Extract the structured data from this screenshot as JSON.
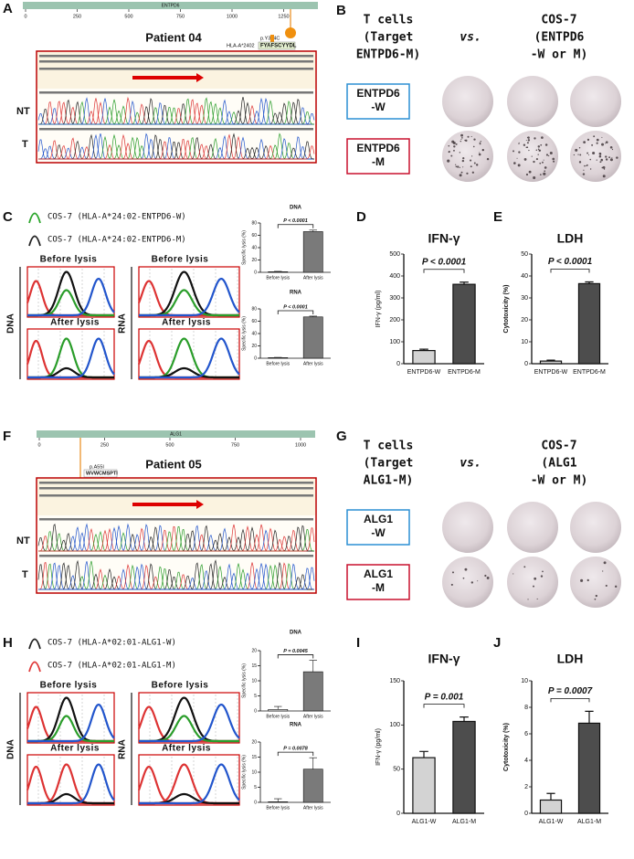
{
  "figure": {
    "A": {
      "letter": "A",
      "gene": "ENTPD6",
      "ticks": [
        "0",
        "250",
        "500",
        "750",
        "1000",
        "1250"
      ],
      "patient": "Patient 04",
      "mutation": "p.Y384C",
      "hla": "HLA-A*2402",
      "peptide": "FYAFSCYYDL",
      "rows": [
        "NT",
        "T"
      ]
    },
    "B": {
      "letter": "B",
      "left": [
        "T cells",
        "(Target",
        "ENTPD6-M)"
      ],
      "vs": "vs.",
      "right": [
        "COS-7",
        "(ENTPD6",
        "-W or M)"
      ],
      "wt": [
        "ENTPD6",
        "-W"
      ],
      "mut": [
        "ENTPD6",
        "-M"
      ]
    },
    "C": {
      "letter": "C",
      "legend": [
        "COS-7 (HLA-A*24:02-ENTPD6-W)",
        "COS-7 (HLA-A*24:02-ENTPD6-M)"
      ],
      "before": "Before lysis",
      "after": "After lysis",
      "dna": "DNA",
      "rna": "RNA"
    },
    "D": {
      "letter": "D"
    },
    "E": {
      "letter": "E"
    },
    "F": {
      "letter": "F",
      "gene": "ALG1",
      "ticks": [
        "0",
        "250",
        "500",
        "750",
        "1000"
      ],
      "patient": "Patient 05",
      "mutation": "p.A55I",
      "peptide": "WVWCMSPTI",
      "rows": [
        "NT",
        "T"
      ]
    },
    "G": {
      "letter": "G",
      "left": [
        "T cells",
        "(Target",
        "ALG1-M)"
      ],
      "vs": "vs.",
      "right": [
        "COS-7",
        "(ALG1",
        "-W or M)"
      ],
      "wt": [
        "ALG1",
        "-W"
      ],
      "mut": [
        "ALG1",
        "-M"
      ]
    },
    "H": {
      "letter": "H",
      "legend": [
        "COS-7 (HLA-A*02:01-ALG1-W)",
        "COS-7 (HLA-A*02:01-ALG1-M)"
      ],
      "before": "Before lysis",
      "after": "After lysis",
      "dna": "DNA",
      "rna": "RNA"
    },
    "I": {
      "letter": "I"
    },
    "J": {
      "letter": "J"
    }
  },
  "chart_data": [
    {
      "type": "bar",
      "title": "DNA",
      "annotation": "P < 0.0001",
      "ylabel": "Specific lysis (%)",
      "categories": [
        "Before lysis",
        "After lysis"
      ],
      "values": [
        1,
        66
      ],
      "errors": [
        0.6,
        2.5
      ],
      "colors": [
        "#e6e6e6",
        "#7a7a7a"
      ],
      "ylim": [
        0,
        80
      ],
      "yticks": [
        0,
        20,
        40,
        60,
        80
      ]
    },
    {
      "type": "bar",
      "title": "RNA",
      "annotation": "P < 0.0001",
      "ylabel": "Specific lysis (%)",
      "categories": [
        "Before lysis",
        "After lysis"
      ],
      "values": [
        1,
        67
      ],
      "errors": [
        0.5,
        1.2
      ],
      "colors": [
        "#e6e6e6",
        "#7a7a7a"
      ],
      "ylim": [
        0,
        80
      ],
      "yticks": [
        0,
        20,
        40,
        60,
        80
      ]
    },
    {
      "type": "bar",
      "title": "IFN-γ",
      "annotation": "P < 0.0001",
      "ylabel": "IFN-γ (pg/ml)",
      "categories": [
        "ENTPD6-W",
        "ENTPD6-M"
      ],
      "values": [
        60,
        362
      ],
      "errors": [
        6,
        10
      ],
      "colors": [
        "#d3d3d3",
        "#4d4d4d"
      ],
      "ylim": [
        0,
        500
      ],
      "yticks": [
        0,
        100,
        200,
        300,
        400,
        500
      ]
    },
    {
      "type": "bar",
      "title": "LDH",
      "annotation": "P < 0.0001",
      "ylabel": "Cytotoxicity (%)",
      "categories": [
        "ENTPD6-W",
        "ENTPD6-M"
      ],
      "values": [
        1.2,
        36.5
      ],
      "errors": [
        0.4,
        0.8
      ],
      "colors": [
        "#d3d3d3",
        "#4d4d4d"
      ],
      "ylim": [
        0,
        50
      ],
      "yticks": [
        0,
        10,
        20,
        30,
        40,
        50
      ]
    },
    {
      "type": "bar",
      "title": "DNA",
      "annotation": "P = 0.0045",
      "ylabel": "Specific lysis (%)",
      "categories": [
        "Before lysis",
        "After lysis"
      ],
      "values": [
        0.5,
        13
      ],
      "errors": [
        1,
        3.8
      ],
      "colors": [
        "#e6e6e6",
        "#7a7a7a"
      ],
      "ylim": [
        0,
        20
      ],
      "yticks": [
        0,
        5,
        10,
        15,
        20
      ]
    },
    {
      "type": "bar",
      "title": "RNA",
      "annotation": "P = 0.0078",
      "ylabel": "Specific lysis (%)",
      "categories": [
        "Before lysis",
        "After lysis"
      ],
      "values": [
        0.2,
        11
      ],
      "errors": [
        1,
        3.8
      ],
      "colors": [
        "#e6e6e6",
        "#7a7a7a"
      ],
      "ylim": [
        0,
        20
      ],
      "yticks": [
        0,
        5,
        10,
        15,
        20
      ]
    },
    {
      "type": "bar",
      "title": "IFN-γ",
      "annotation": "P = 0.001",
      "ylabel": "IFN-γ (pg/ml)",
      "categories": [
        "ALG1-W",
        "ALG1-M"
      ],
      "values": [
        63,
        104
      ],
      "errors": [
        7,
        5
      ],
      "colors": [
        "#d3d3d3",
        "#4d4d4d"
      ],
      "ylim": [
        0,
        150
      ],
      "yticks": [
        0,
        50,
        100,
        150
      ]
    },
    {
      "type": "bar",
      "title": "LDH",
      "annotation": "P = 0.0007",
      "ylabel": "Cytotoxicity (%)",
      "categories": [
        "ALG1-W",
        "ALG1-M"
      ],
      "values": [
        1.0,
        6.8
      ],
      "errors": [
        0.5,
        0.9
      ],
      "colors": [
        "#d3d3d3",
        "#4d4d4d"
      ],
      "ylim": [
        0,
        10
      ],
      "yticks": [
        0,
        2,
        4,
        6,
        8,
        10
      ]
    }
  ]
}
